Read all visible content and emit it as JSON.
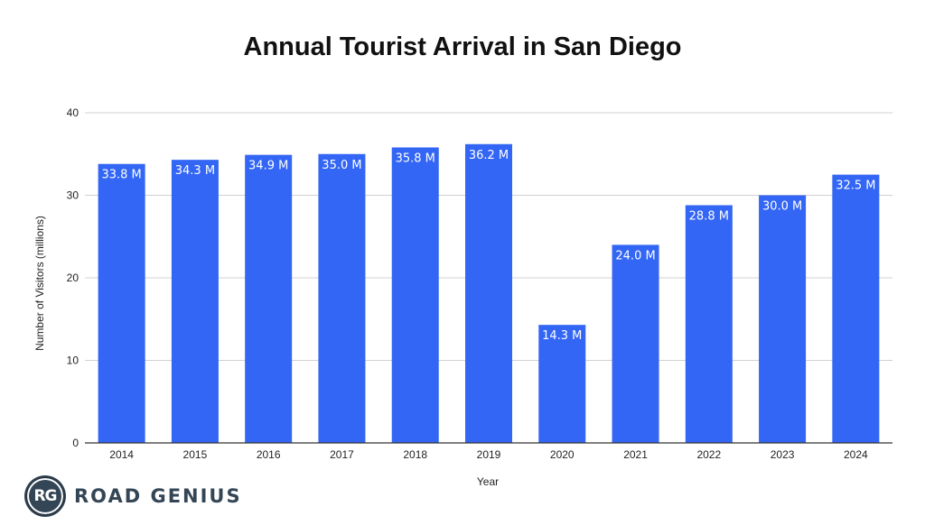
{
  "chart_data": {
    "type": "bar",
    "title": "Annual Tourist Arrival in San Diego",
    "xlabel": "Year",
    "ylabel": "Number of Visitors (millions)",
    "categories": [
      "2014",
      "2015",
      "2016",
      "2017",
      "2018",
      "2019",
      "2020",
      "2021",
      "2022",
      "2023",
      "2024"
    ],
    "values": [
      33.8,
      34.3,
      34.9,
      35.0,
      35.8,
      36.2,
      14.3,
      24.0,
      28.8,
      30.0,
      32.5
    ],
    "data_labels": [
      "33.8 M",
      "34.3 M",
      "34.9 M",
      "35.0 M",
      "35.8 M",
      "36.2 M",
      "14.3 M",
      "24.0 M",
      "28.8 M",
      "30.0 M",
      "32.5 M"
    ],
    "ylim": [
      0,
      40
    ],
    "yticks": [
      0,
      10,
      20,
      30,
      40
    ],
    "grid": true,
    "bar_color": "#3366f5",
    "grid_color": "#d0d0d0"
  },
  "brand": {
    "badge": "RG",
    "name": "ROAD GENIUS"
  }
}
